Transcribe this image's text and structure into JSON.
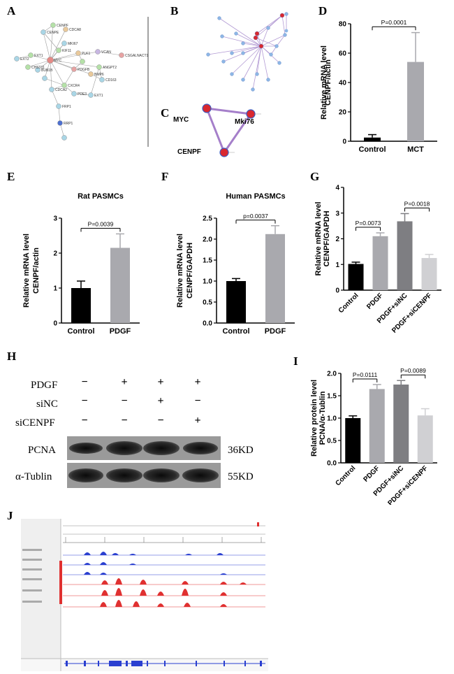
{
  "panels": {
    "A": "A",
    "B": "B",
    "C": "C",
    "D": "D",
    "E": "E",
    "F": "F",
    "G": "G",
    "H": "H",
    "I": "I",
    "J": "J"
  },
  "network_a": {
    "nodes": [
      "CENPF",
      "CDCA8",
      "CDCA7",
      "MKI67",
      "BIRC",
      "SMC",
      "PLK1",
      "CENPF",
      "MYC",
      "RRP",
      "KIF20A",
      "CDK1",
      "CDKN3",
      "SOX",
      "CDK1",
      "CCNB1",
      "CCNB2",
      "BUB1",
      "HFE",
      "EXT1",
      "EXT2",
      "CENPA",
      "CDC45",
      "CDC6",
      "CDCA3"
    ],
    "labels": [
      "CENPF",
      "CDCA8",
      "CENPE",
      "MKI67",
      "EXT1",
      "MYC",
      "KIF11",
      "PLK1",
      "VCAN",
      "CSGALNACT1",
      "EXT2",
      "CHST11",
      "BUB1B",
      "PDGFB",
      "ANGPT2",
      "BMP6",
      "CD163",
      "CXCR4",
      "PDE3",
      "CDCA2",
      "EXT1",
      "FRP1",
      "RRP1"
    ]
  },
  "network_c": {
    "nodes": [
      "MYC",
      "Mki76",
      "CENPF"
    ]
  },
  "chart_data": [
    {
      "id": "D",
      "type": "bar",
      "categories": [
        "Control",
        "MCT"
      ],
      "values": [
        2.5,
        54
      ],
      "errors": [
        2,
        20
      ],
      "ylabel": "Relative  mRNA level\nCENPF/actin",
      "ylabel_lines": [
        "Relative  mRNA level",
        "CENPF/actin"
      ],
      "ylim": [
        0,
        80
      ],
      "ticks": [
        "0",
        "20",
        "40",
        "60",
        "80"
      ],
      "colors": [
        "#000000",
        "#a9a9ae"
      ],
      "sig": [
        {
          "from": 0,
          "to": 1,
          "label": "P=0.0001"
        }
      ]
    },
    {
      "id": "E",
      "type": "bar",
      "title": "Rat PASMCs",
      "categories": [
        "Control",
        "PDGF"
      ],
      "values": [
        1.0,
        2.15
      ],
      "errors": [
        0.2,
        0.4
      ],
      "ylabel_lines": [
        "Relative  mRNA  level",
        "CENPF/actin"
      ],
      "ylim": [
        0,
        3
      ],
      "ticks": [
        "0",
        "1",
        "2",
        "3"
      ],
      "colors": [
        "#000000",
        "#a9a9ae"
      ],
      "sig": [
        {
          "from": 0,
          "to": 1,
          "label": "P=0.0039"
        }
      ]
    },
    {
      "id": "F",
      "type": "bar",
      "title": "Human PASMCs",
      "categories": [
        "Control",
        "PDGF"
      ],
      "values": [
        1.0,
        2.12
      ],
      "errors": [
        0.06,
        0.2
      ],
      "ylabel_lines": [
        "Relative mRNA level",
        "CENPF/GAPDH"
      ],
      "ylim": [
        0,
        2.5
      ],
      "ticks": [
        "0.0",
        "0.5",
        "1.0",
        "1.5",
        "2.0",
        "2.5"
      ],
      "colors": [
        "#000000",
        "#a9a9ae"
      ],
      "sig": [
        {
          "from": 0,
          "to": 1,
          "label": "p=0.0037"
        }
      ]
    },
    {
      "id": "G",
      "type": "bar",
      "categories": [
        "Control",
        "PDGF",
        "PDGF+siNC",
        "PDGF+siCENPF"
      ],
      "values": [
        1.02,
        2.1,
        2.68,
        1.25
      ],
      "errors": [
        0.07,
        0.13,
        0.3,
        0.14
      ],
      "ylabel_lines": [
        "Relative mRNA level",
        "CENPF/GAPDH"
      ],
      "ylim": [
        0,
        4
      ],
      "ticks": [
        "0",
        "1",
        "2",
        "3",
        "4"
      ],
      "colors": [
        "#000000",
        "#a9a9ae",
        "#7e7e82",
        "#d0d0d3"
      ],
      "sig": [
        {
          "from": 0,
          "to": 1,
          "label": "P=0.0073"
        },
        {
          "from": 2,
          "to": 3,
          "label": "P=0.0018"
        }
      ]
    },
    {
      "id": "I",
      "type": "bar",
      "categories": [
        "Control",
        "PDGF",
        "PDGF+siNC",
        "PDGF+siCENPF"
      ],
      "values": [
        1.0,
        1.65,
        1.75,
        1.06
      ],
      "errors": [
        0.05,
        0.1,
        0.09,
        0.15
      ],
      "ylabel_lines": [
        "Relative protein level",
        "PCNA/α-Tublin"
      ],
      "ylim": [
        0,
        2.0
      ],
      "ticks": [
        "0.0",
        "0.5",
        "1.0",
        "1.5",
        "2.0"
      ],
      "colors": [
        "#000000",
        "#a9a9ae",
        "#7e7e82",
        "#d0d0d3"
      ],
      "sig": [
        {
          "from": 0,
          "to": 1,
          "label": "P=0.0111"
        },
        {
          "from": 2,
          "to": 3,
          "label": "P=0.0089"
        }
      ]
    }
  ],
  "western": {
    "conditions": [
      {
        "label": "PDGF",
        "signs": [
          "−",
          "+",
          "+",
          "+"
        ]
      },
      {
        "label": "siNC",
        "signs": [
          "−",
          "−",
          "+",
          "−"
        ]
      },
      {
        "label": "siCENPF",
        "signs": [
          "−",
          "−",
          "−",
          "+"
        ]
      }
    ],
    "bands": [
      {
        "label": "PCNA",
        "size": "36KD"
      },
      {
        "label": "α-Tublin",
        "size": "55KD"
      }
    ]
  }
}
